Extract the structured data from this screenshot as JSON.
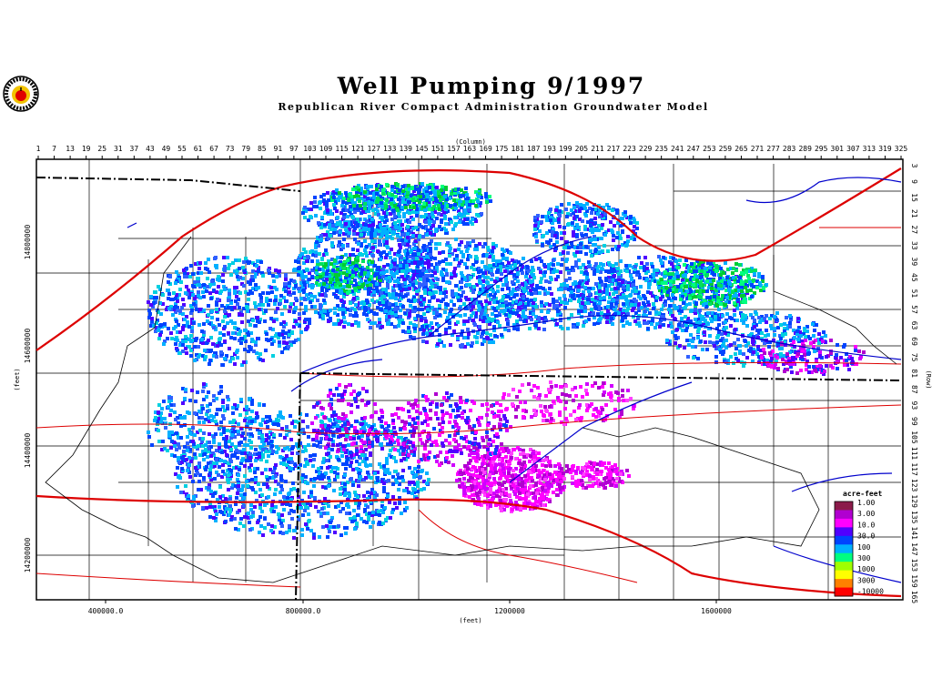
{
  "header": {
    "title": "Well Pumping 9/1997",
    "subtitle": "Republican River Compact Administration Groundwater Model"
  },
  "axes": {
    "column_label": "(Column)",
    "row_label": "(Row)",
    "x_feet_label": "(feet)",
    "y_feet_label": "(feet)",
    "column_ticks": [
      "1",
      "7",
      "13",
      "19",
      "25",
      "31",
      "37",
      "43",
      "49",
      "55",
      "61",
      "67",
      "73",
      "79",
      "85",
      "91",
      "97",
      "103",
      "109",
      "115",
      "121",
      "127",
      "133",
      "139",
      "145",
      "151",
      "157",
      "163",
      "169",
      "175",
      "181",
      "187",
      "193",
      "199",
      "205",
      "211",
      "217",
      "223",
      "229",
      "235",
      "241",
      "247",
      "253",
      "259",
      "265",
      "271",
      "277",
      "283",
      "289",
      "295",
      "301",
      "307",
      "313",
      "319",
      "325"
    ],
    "row_ticks": [
      "3",
      "9",
      "15",
      "21",
      "27",
      "33",
      "39",
      "45",
      "51",
      "57",
      "63",
      "69",
      "75",
      "81",
      "87",
      "93",
      "99",
      "105",
      "111",
      "117",
      "123",
      "129",
      "135",
      "141",
      "147",
      "153",
      "159",
      "165"
    ],
    "x_feet_ticks": [
      "400000.0",
      "800000.0",
      "1200000",
      "1600000"
    ],
    "y_feet_ticks": [
      "14800000",
      "14600000",
      "14400000",
      "14200000"
    ]
  },
  "legend": {
    "title": "acre-feet",
    "labels": [
      "1.00",
      "3.00",
      "10.0",
      "30.0",
      "100",
      "300",
      "1000",
      "3000",
      "-10000"
    ],
    "colors": [
      "#8b1a4a",
      "#b000d0",
      "#ff00ff",
      "#5000ff",
      "#0044ff",
      "#00b0ff",
      "#00ff80",
      "#a0ff00",
      "#ffff00",
      "#ff8000",
      "#ff0000"
    ]
  },
  "colors": {
    "rivers": "#0000cc",
    "roads": "#dd0000",
    "boundaries": "#000000",
    "low_pumping": "#ff00ff",
    "mid_pumping": "#0044ff",
    "high_pumping": "#00cc33"
  }
}
